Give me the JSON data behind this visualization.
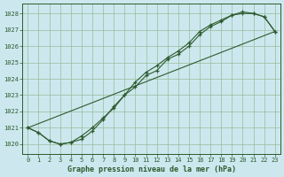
{
  "title": "Graphe pression niveau de la mer (hPa)",
  "bg_color": "#cce8ee",
  "grid_color": "#99bb99",
  "line_color": "#2d5a2d",
  "xlim": [
    -0.5,
    23.5
  ],
  "ylim": [
    1019.4,
    1028.6
  ],
  "yticks": [
    1020,
    1021,
    1022,
    1023,
    1024,
    1025,
    1026,
    1027,
    1028
  ],
  "xticks": [
    0,
    1,
    2,
    3,
    4,
    5,
    6,
    7,
    8,
    9,
    10,
    11,
    12,
    13,
    14,
    15,
    16,
    17,
    18,
    19,
    20,
    21,
    22,
    23
  ],
  "series1_x": [
    0,
    1,
    2,
    3,
    4,
    5,
    6,
    7,
    8,
    9,
    10,
    11,
    12,
    13,
    14,
    15,
    16,
    17,
    18,
    19,
    20,
    21,
    22,
    23
  ],
  "series1_y": [
    1021.0,
    1020.7,
    1020.2,
    1020.0,
    1020.1,
    1020.5,
    1021.0,
    1021.6,
    1022.2,
    1023.0,
    1023.5,
    1024.2,
    1024.5,
    1025.2,
    1025.5,
    1026.0,
    1026.7,
    1027.2,
    1027.5,
    1027.9,
    1028.0,
    1028.0,
    1027.8,
    1026.9
  ],
  "series2_x": [
    0,
    1,
    2,
    3,
    4,
    5,
    6,
    7,
    8,
    9,
    10,
    11,
    12,
    13,
    14,
    15,
    16,
    17,
    18,
    19,
    20,
    21,
    22,
    23
  ],
  "series2_y": [
    1021.0,
    1020.7,
    1020.2,
    1020.0,
    1020.1,
    1020.3,
    1020.8,
    1021.5,
    1022.3,
    1023.0,
    1023.8,
    1024.4,
    1024.8,
    1025.3,
    1025.7,
    1026.2,
    1026.9,
    1027.3,
    1027.6,
    1027.9,
    1028.1,
    1028.0,
    1027.8,
    1026.9
  ],
  "series3_x": [
    0,
    23
  ],
  "series3_y": [
    1021.0,
    1026.9
  ]
}
